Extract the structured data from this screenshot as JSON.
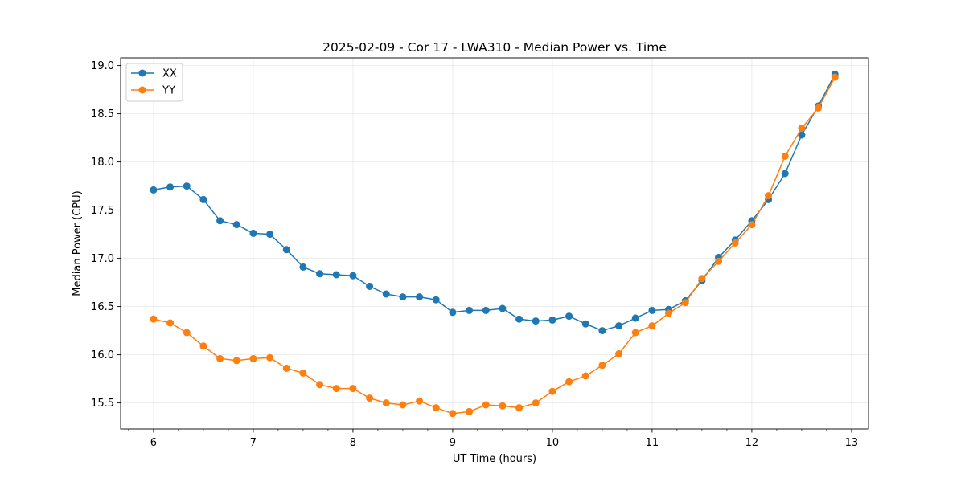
{
  "chart_data": {
    "type": "line",
    "title": "2025-02-09 - Cor 17 - LWA310 - Median Power vs. Time",
    "xlabel": "UT Time (hours)",
    "ylabel": "Median Power (CPU)",
    "xlim": [
      5.67,
      13.17
    ],
    "ylim": [
      15.23,
      19.08
    ],
    "xticks": [
      6,
      7,
      8,
      9,
      10,
      11,
      12,
      13
    ],
    "xtick_labels": [
      "6",
      "7",
      "8",
      "9",
      "10",
      "11",
      "12",
      "13"
    ],
    "yticks": [
      15.5,
      16.0,
      16.5,
      17.0,
      17.5,
      18.0,
      18.5,
      19.0
    ],
    "ytick_labels": [
      "15.5",
      "16.0",
      "16.5",
      "17.0",
      "17.5",
      "18.0",
      "18.5",
      "19.0"
    ],
    "grid": true,
    "legend_position": "top-left",
    "x": [
      6.0,
      6.1667,
      6.3333,
      6.5,
      6.6667,
      6.8333,
      7.0,
      7.1667,
      7.3333,
      7.5,
      7.6667,
      7.8333,
      8.0,
      8.1667,
      8.3333,
      8.5,
      8.6667,
      8.8333,
      9.0,
      9.1667,
      9.3333,
      9.5,
      9.6667,
      9.8333,
      10.0,
      10.1667,
      10.3333,
      10.5,
      10.6667,
      10.8333,
      11.0,
      11.1667,
      11.3333,
      11.5,
      11.6667,
      11.8333,
      12.0,
      12.1667,
      12.3333,
      12.5,
      12.6667,
      12.8333
    ],
    "series": [
      {
        "name": "XX",
        "color": "#1f77b4",
        "values": [
          17.71,
          17.74,
          17.75,
          17.61,
          17.39,
          17.35,
          17.26,
          17.25,
          17.09,
          16.91,
          16.84,
          16.83,
          16.82,
          16.71,
          16.63,
          16.6,
          16.6,
          16.57,
          16.44,
          16.46,
          16.46,
          16.48,
          16.37,
          16.35,
          16.36,
          16.4,
          16.32,
          16.25,
          16.3,
          16.38,
          16.46,
          16.47,
          16.56,
          16.77,
          17.01,
          17.19,
          17.39,
          17.61,
          17.88,
          18.28,
          18.58,
          18.91
        ]
      },
      {
        "name": "YY",
        "color": "#ff7f0e",
        "values": [
          16.37,
          16.33,
          16.23,
          16.09,
          15.96,
          15.94,
          15.96,
          15.97,
          15.86,
          15.81,
          15.69,
          15.65,
          15.65,
          15.55,
          15.5,
          15.48,
          15.52,
          15.45,
          15.39,
          15.41,
          15.48,
          15.47,
          15.45,
          15.5,
          15.62,
          15.72,
          15.78,
          15.89,
          16.01,
          16.23,
          16.3,
          16.43,
          16.54,
          16.79,
          16.97,
          17.16,
          17.35,
          17.65,
          18.06,
          18.35,
          18.56,
          18.88
        ]
      }
    ]
  }
}
